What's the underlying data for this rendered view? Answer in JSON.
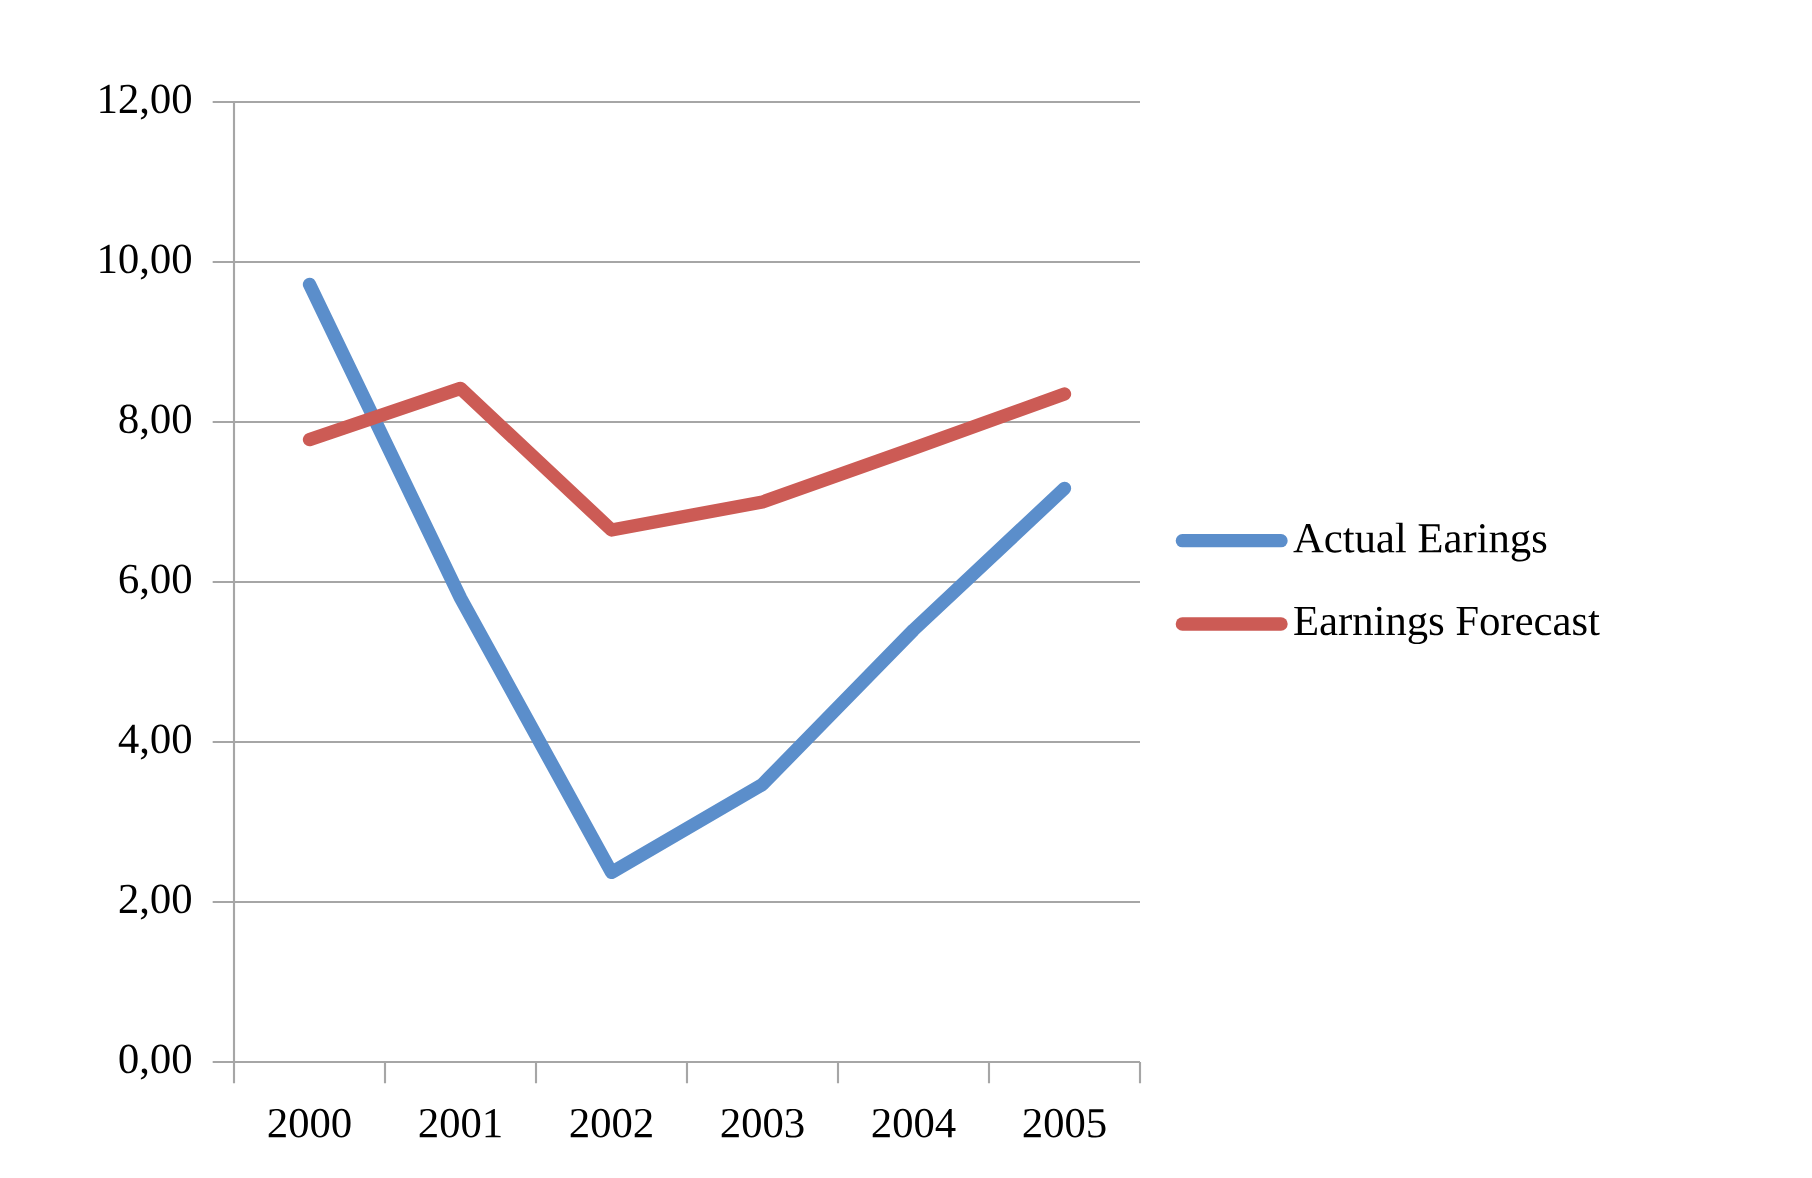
{
  "chart_data": {
    "type": "line",
    "categories": [
      "2000",
      "2001",
      "2002",
      "2003",
      "2004",
      "2005"
    ],
    "series": [
      {
        "name": "Actual Earings",
        "color": "#5b8ecb",
        "values": [
          9.72,
          5.8,
          2.37,
          3.47,
          5.4,
          7.17
        ]
      },
      {
        "name": "Earnings Forecast",
        "color": "#cc5b55",
        "values": [
          7.78,
          8.42,
          6.65,
          7.0,
          7.67,
          8.35
        ]
      }
    ],
    "ylim": [
      0,
      12
    ],
    "yticks": [
      {
        "value": 0,
        "label": "0,00"
      },
      {
        "value": 2,
        "label": "2,00"
      },
      {
        "value": 4,
        "label": "4,00"
      },
      {
        "value": 6,
        "label": "6,00"
      },
      {
        "value": 8,
        "label": "8,00"
      },
      {
        "value": 10,
        "label": "10,00"
      },
      {
        "value": 12,
        "label": "12,00"
      }
    ],
    "grid": "y",
    "legend": "right",
    "marker": "none",
    "line_style": "solid"
  }
}
